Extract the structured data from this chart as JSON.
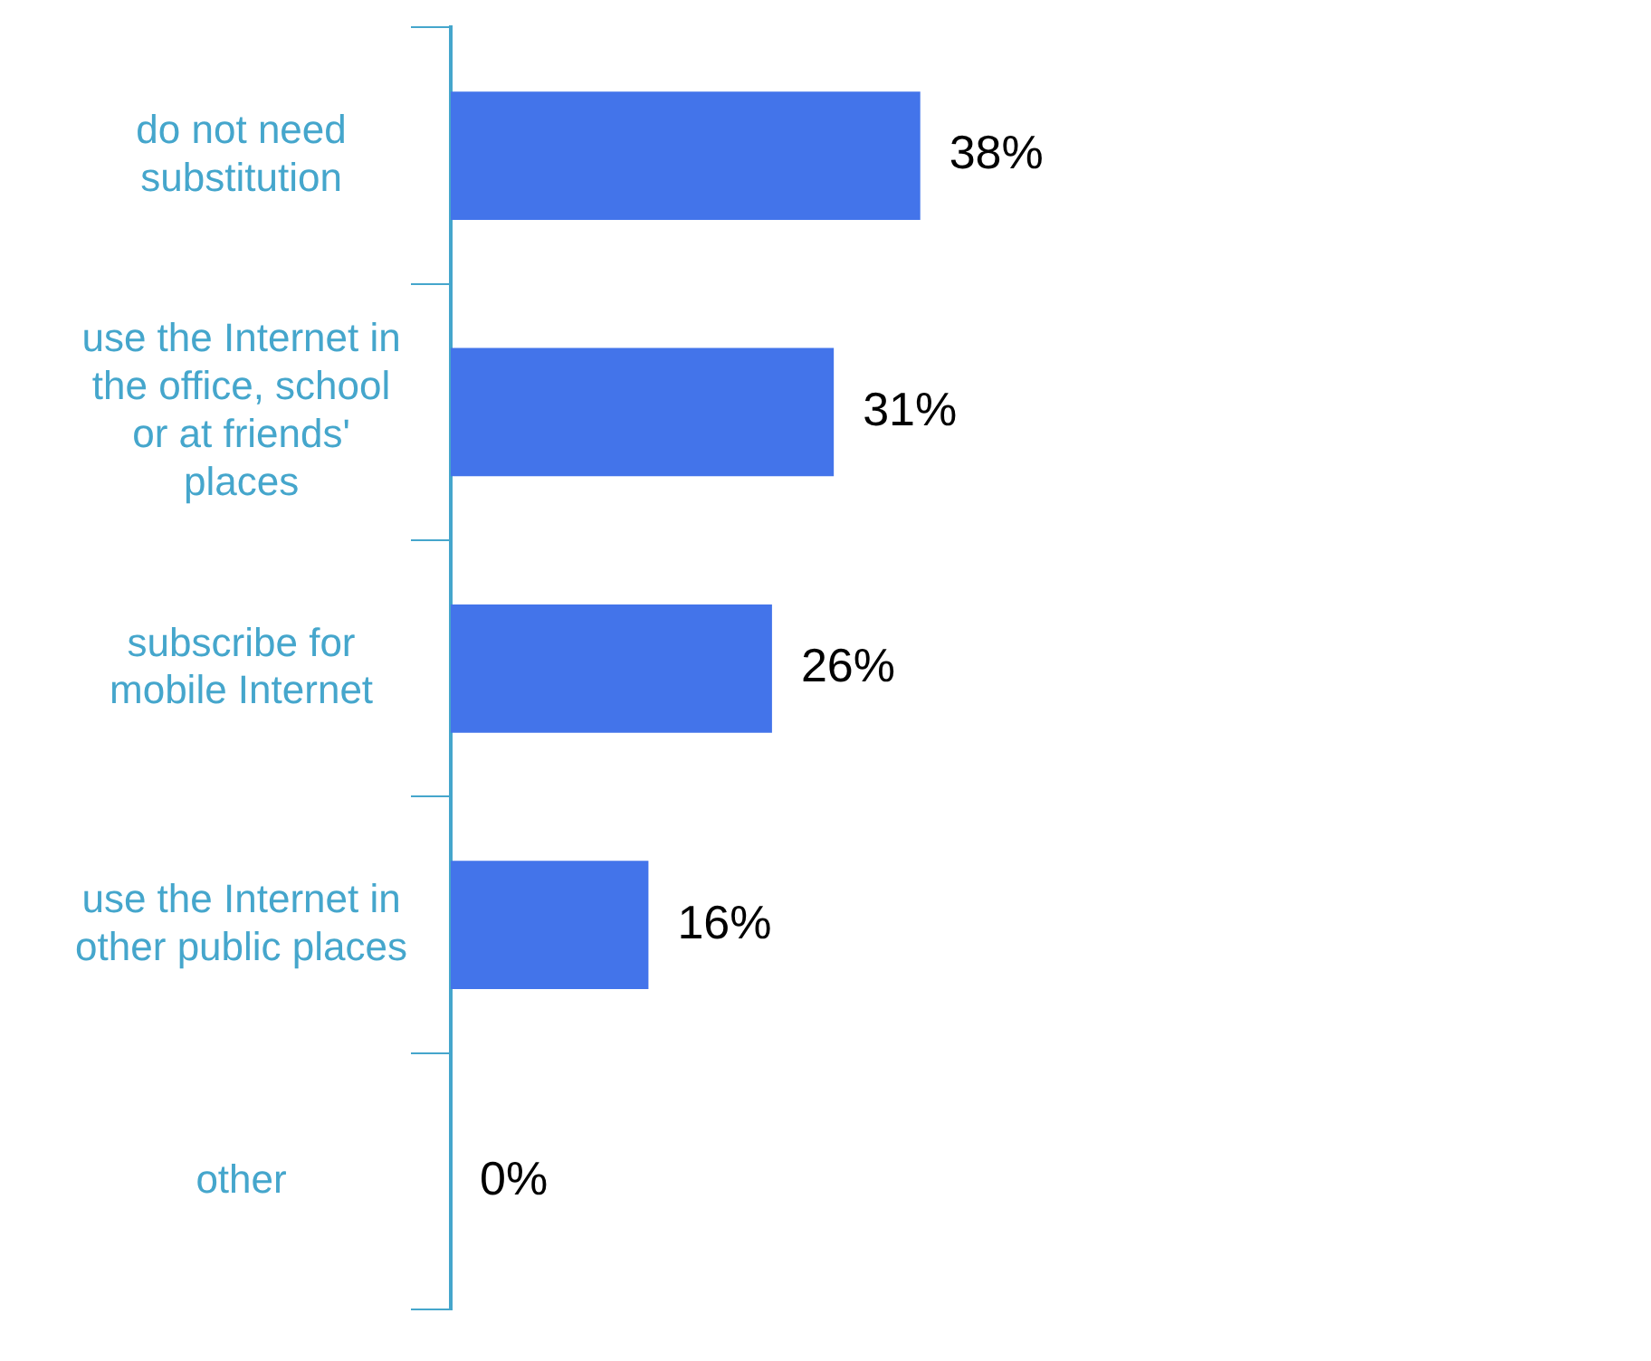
{
  "chart_data": {
    "type": "bar",
    "orientation": "horizontal",
    "categories": [
      "do not need substitution",
      "use the Internet in the office, school or at friends' places",
      "subscribe for mobile Internet",
      "use the Internet in other public places",
      "other"
    ],
    "values": [
      38,
      31,
      26,
      16,
      0
    ],
    "color": "#4374ea",
    "tick_labels": "y",
    "data_labels": true,
    "value_labels": [
      "38%",
      "31%",
      "26%",
      "16%",
      "0%"
    ]
  }
}
